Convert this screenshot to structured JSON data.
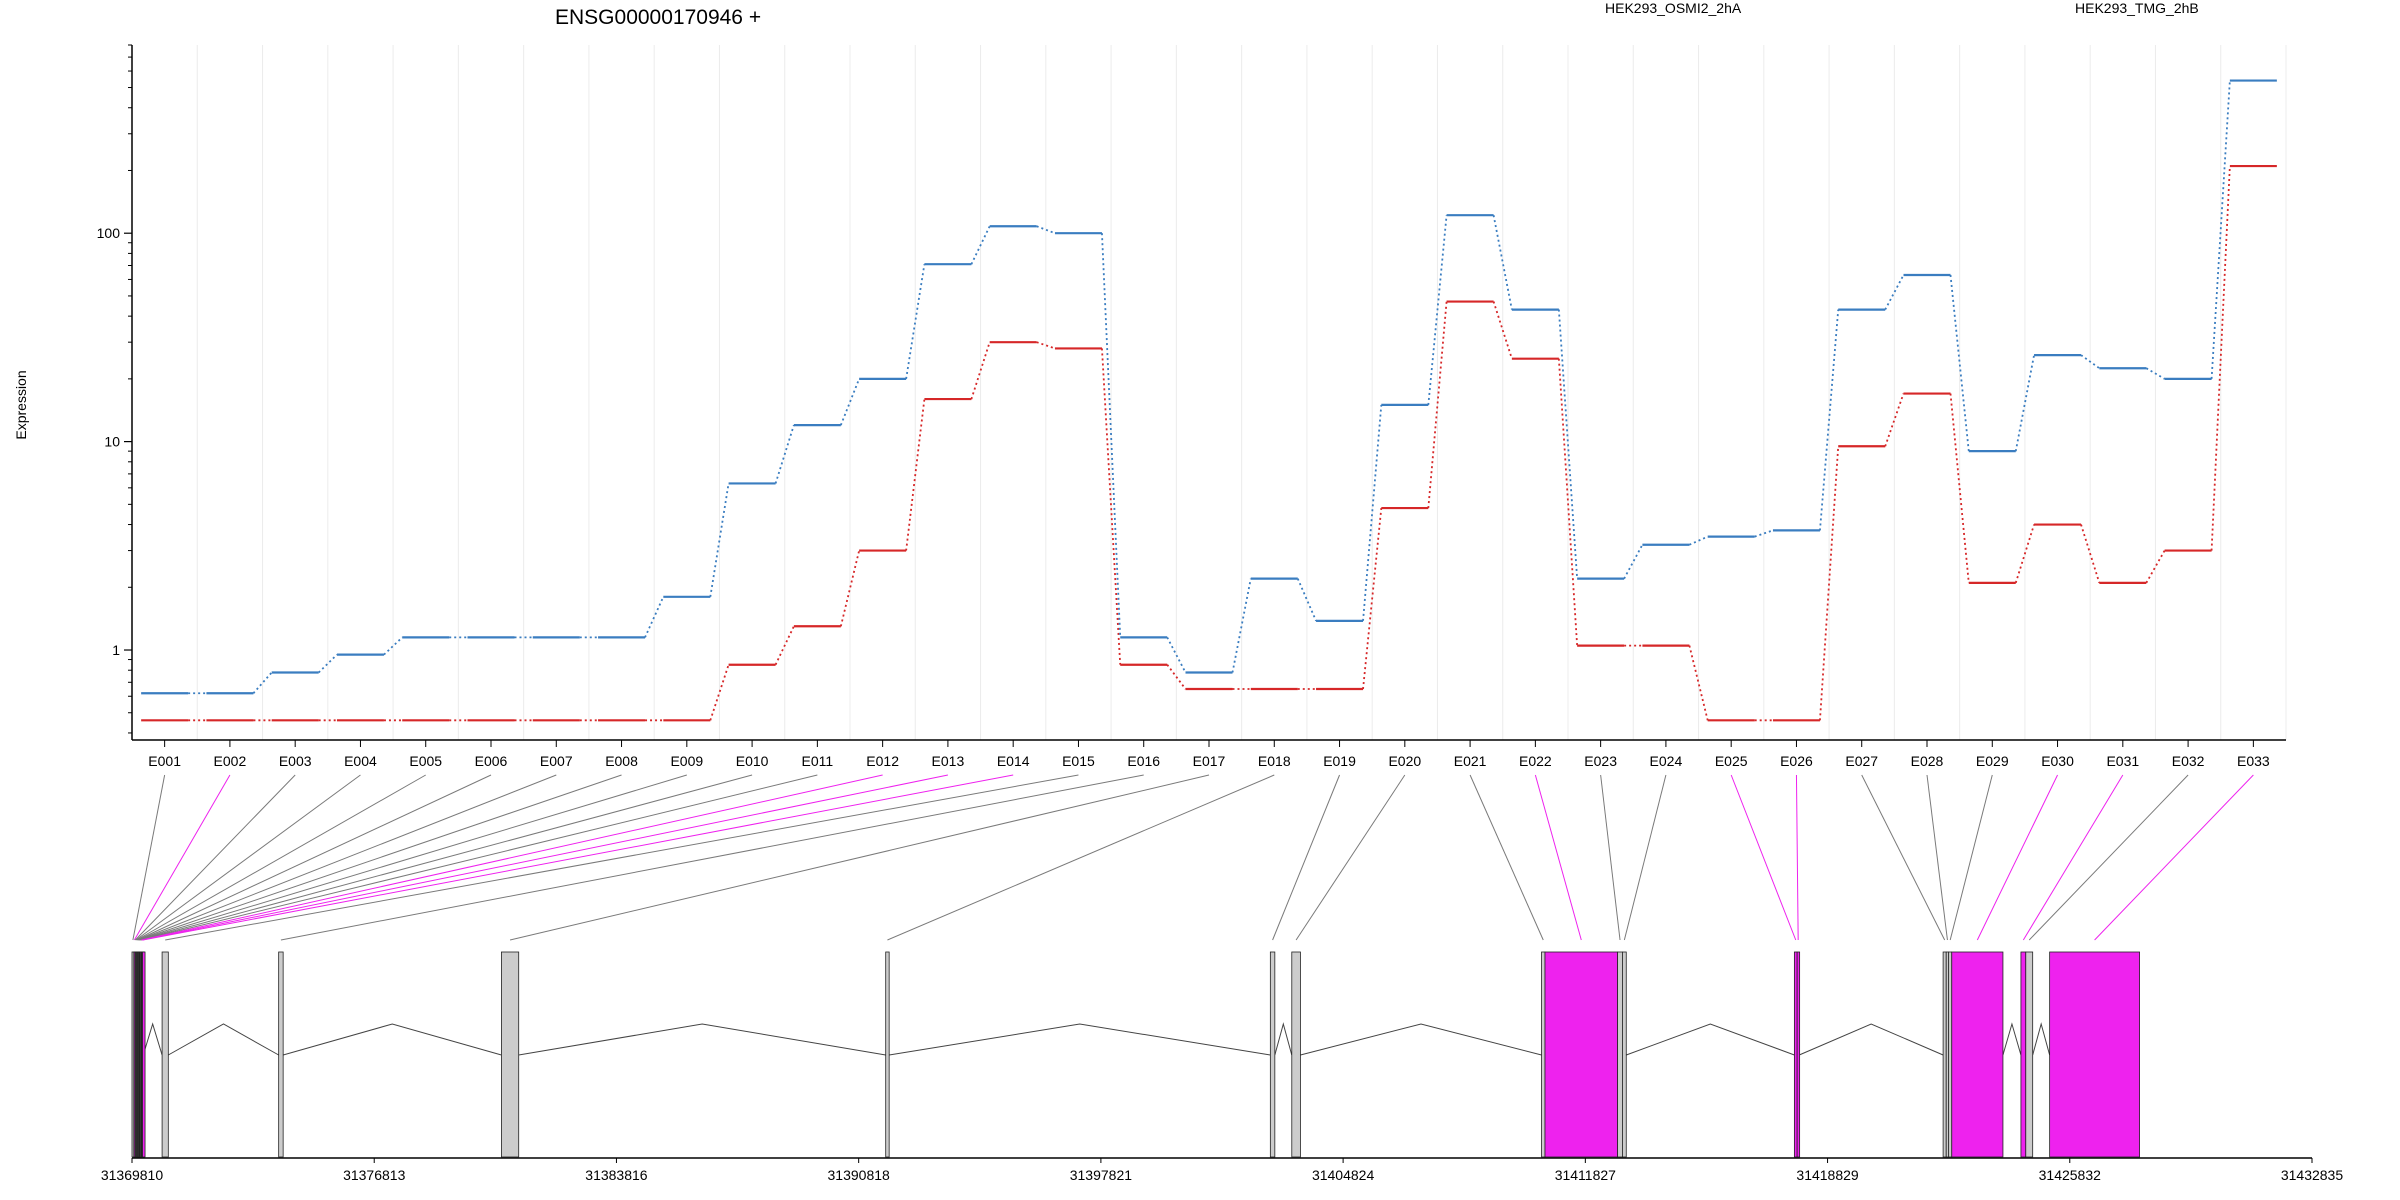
{
  "chart_data": {
    "type": "line",
    "title": "ENSG00000170946 +",
    "ylabel": "Expression",
    "xlabel": "",
    "yscale": "log",
    "ylim": [
      0.37,
      800
    ],
    "yticks": [
      {
        "value": 1,
        "label": "1"
      },
      {
        "value": 10,
        "label": "10"
      },
      {
        "value": 100,
        "label": "100"
      }
    ],
    "grid": "vertical light gridlines",
    "legend_placement": "top",
    "categories": [
      "E001",
      "E002",
      "E003",
      "E004",
      "E005",
      "E006",
      "E007",
      "E008",
      "E009",
      "E010",
      "E011",
      "E012",
      "E013",
      "E014",
      "E015",
      "E016",
      "E017",
      "E018",
      "E019",
      "E020",
      "E021",
      "E022",
      "E023",
      "E024",
      "E025",
      "E026",
      "E027",
      "E028",
      "E029",
      "E030",
      "E031",
      "E032",
      "E033"
    ],
    "series": [
      {
        "name": "HEK293_OSMI2_2hA",
        "color": "#d62728",
        "values": [
          0.46,
          0.46,
          0.46,
          0.46,
          0.46,
          0.46,
          0.46,
          0.46,
          0.46,
          0.85,
          1.3,
          3.0,
          16,
          30,
          28,
          0.85,
          0.65,
          0.65,
          0.65,
          4.8,
          47,
          25,
          1.05,
          1.05,
          0.46,
          0.46,
          9.5,
          17,
          2.1,
          4.0,
          2.1,
          3.0,
          210
        ]
      },
      {
        "name": "HEK293_TMG_2hB",
        "color": "#3a7dc0",
        "values": [
          0.62,
          0.62,
          0.78,
          0.95,
          1.15,
          1.15,
          1.15,
          1.15,
          1.8,
          6.3,
          12,
          20,
          71,
          108,
          100,
          1.15,
          0.78,
          2.2,
          1.38,
          15,
          122,
          43,
          2.2,
          3.2,
          3.5,
          3.75,
          43,
          63,
          9,
          26,
          22.5,
          20,
          540
        ]
      }
    ],
    "gene_model": {
      "coordinate_ticks": [
        "31369810",
        "31376813",
        "31383816",
        "31390818",
        "31397821",
        "31404824",
        "31411827",
        "31418829",
        "31425832",
        "31432835"
      ],
      "range": [
        31369810,
        31432835
      ],
      "exon_colors": {
        "normal": "#cccccc",
        "highlighted": "#ee22ee"
      },
      "exons": [
        {
          "id": "E001",
          "start": 31369810,
          "end": 31369862,
          "highlighted": false
        },
        {
          "id": "E002",
          "start": 31369862,
          "end": 31369895,
          "highlighted": true
        },
        {
          "id": "E003",
          "start": 31369895,
          "end": 31369915,
          "highlighted": false
        },
        {
          "id": "E004",
          "start": 31369915,
          "end": 31369935,
          "highlighted": false
        },
        {
          "id": "E005",
          "start": 31369935,
          "end": 31369955,
          "highlighted": false
        },
        {
          "id": "E006",
          "start": 31369955,
          "end": 31369975,
          "highlighted": false
        },
        {
          "id": "E007",
          "start": 31369975,
          "end": 31369995,
          "highlighted": false
        },
        {
          "id": "E008",
          "start": 31369995,
          "end": 31370015,
          "highlighted": false
        },
        {
          "id": "E009",
          "start": 31370015,
          "end": 31370035,
          "highlighted": false
        },
        {
          "id": "E010",
          "start": 31370035,
          "end": 31370055,
          "highlighted": false
        },
        {
          "id": "E011",
          "start": 31370055,
          "end": 31370075,
          "highlighted": false
        },
        {
          "id": "E012",
          "start": 31370075,
          "end": 31370095,
          "highlighted": true
        },
        {
          "id": "E013",
          "start": 31370095,
          "end": 31370115,
          "highlighted": true
        },
        {
          "id": "E014",
          "start": 31370115,
          "end": 31370135,
          "highlighted": true
        },
        {
          "id": "E015",
          "start": 31370680,
          "end": 31370860,
          "highlighted": false
        },
        {
          "id": "E016",
          "start": 31374050,
          "end": 31374180,
          "highlighted": false
        },
        {
          "id": "E017",
          "start": 31380490,
          "end": 31380990,
          "highlighted": false
        },
        {
          "id": "E018",
          "start": 31391600,
          "end": 31391700,
          "highlighted": false
        },
        {
          "id": "E019",
          "start": 31402720,
          "end": 31402850,
          "highlighted": false
        },
        {
          "id": "E020",
          "start": 31403340,
          "end": 31403590,
          "highlighted": false
        },
        {
          "id": "E021",
          "start": 31410560,
          "end": 31410660,
          "highlighted": false
        },
        {
          "id": "E022",
          "start": 31410660,
          "end": 31412760,
          "highlighted": true
        },
        {
          "id": "E023",
          "start": 31412760,
          "end": 31412900,
          "highlighted": false
        },
        {
          "id": "E024",
          "start": 31412900,
          "end": 31413010,
          "highlighted": false
        },
        {
          "id": "E025",
          "start": 31417870,
          "end": 31417950,
          "highlighted": true
        },
        {
          "id": "E026",
          "start": 31417950,
          "end": 31418010,
          "highlighted": true
        },
        {
          "id": "E027",
          "start": 31422170,
          "end": 31422260,
          "highlighted": false
        },
        {
          "id": "E028",
          "start": 31422260,
          "end": 31422330,
          "highlighted": false
        },
        {
          "id": "E029",
          "start": 31422330,
          "end": 31422420,
          "highlighted": false
        },
        {
          "id": "E030",
          "start": 31422420,
          "end": 31423900,
          "highlighted": true
        },
        {
          "id": "E031",
          "start": 31424420,
          "end": 31424560,
          "highlighted": true
        },
        {
          "id": "E032",
          "start": 31424560,
          "end": 31424760,
          "highlighted": false
        },
        {
          "id": "E033",
          "start": 31425250,
          "end": 31427850,
          "highlighted": true
        }
      ]
    }
  }
}
